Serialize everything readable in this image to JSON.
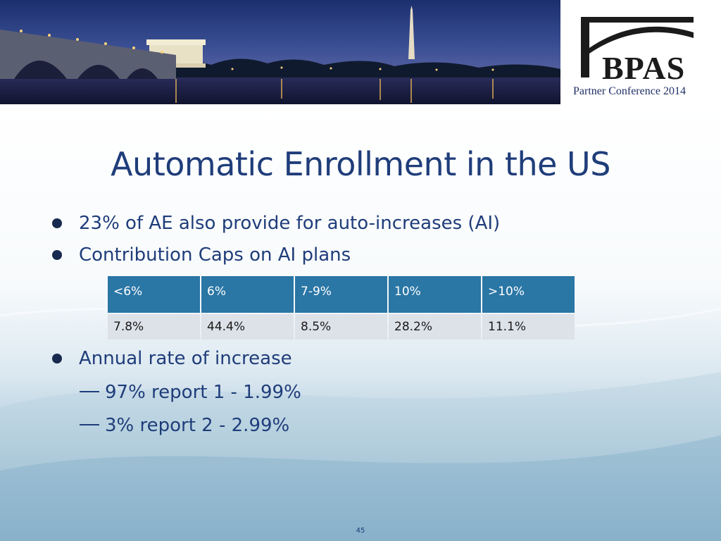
{
  "header": {
    "logo_text": "BPAS",
    "conference": "Partner Conference 2014"
  },
  "slide": {
    "title": "Automatic Enrollment in the US",
    "bullets": [
      "23% of AE also provide for auto-increases (AI)",
      "Contribution Caps on AI plans",
      "Annual rate of increase"
    ],
    "sub_items": [
      "97% report 1 - 1.99%",
      "3% report 2 - 2.99%"
    ],
    "table": {
      "headers": [
        "<6%",
        "6%",
        "7-9%",
        "10%",
        ">10%"
      ],
      "values": [
        "7.8%",
        "44.4%",
        "8.5%",
        "28.2%",
        "11.1%"
      ]
    },
    "page_number": "45"
  },
  "colors": {
    "title": "#1f3d7a",
    "table_header": "#2a76a5",
    "table_row": "#dde1e8"
  }
}
